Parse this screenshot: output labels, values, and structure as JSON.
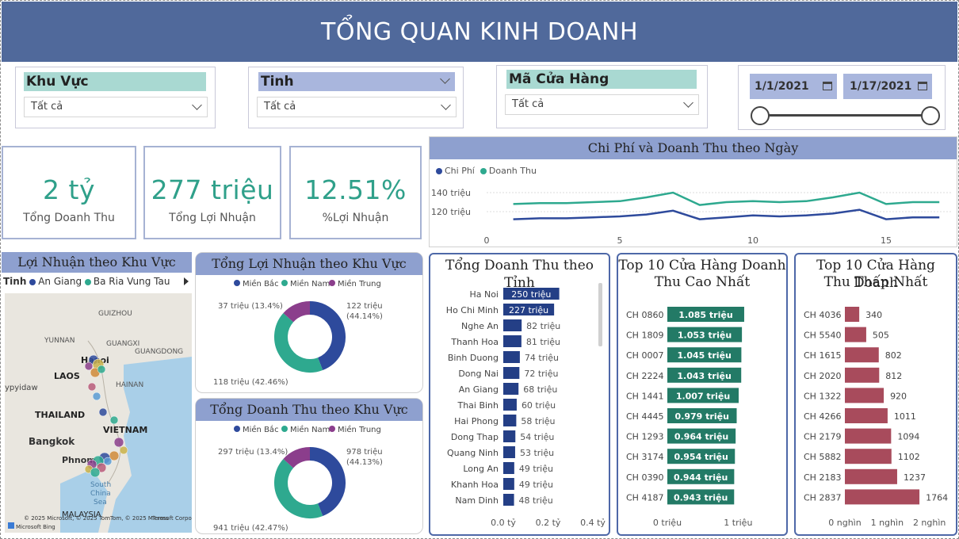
{
  "header": {
    "title": "TỔNG QUAN KINH DOANH"
  },
  "slicers": {
    "region": {
      "title": "Khu Vực",
      "value": "Tất cả"
    },
    "province": {
      "title": "Tinh",
      "value": "Tất cả"
    },
    "store": {
      "title": "Mã Cửa Hàng",
      "value": "Tất cả"
    },
    "date": {
      "start": "1/1/2021",
      "end": "1/17/2021",
      "range": [
        0.0,
        1.0
      ]
    }
  },
  "kpis": [
    {
      "value": "2 tỷ",
      "label": "Tổng Doanh Thu"
    },
    {
      "value": "277 triệu",
      "label": "Tổng Lợi Nhuận"
    },
    {
      "value": "12.51%",
      "label": "%Lợi Nhuận"
    }
  ],
  "colors": {
    "accent": "#2fa08a",
    "banner": "#50699b",
    "navy": "#2e4a9c",
    "teal": "#2ea98f",
    "purple": "#8b3e8c",
    "maroon": "#a84b5c",
    "green": "#237a66"
  },
  "line_chart": {
    "title": "Chi Phí và Doanh Thu theo Ngày",
    "legend": [
      "Chi Phí",
      "Doanh Thu"
    ],
    "yticks": [
      "140 triệu",
      "120 triệu"
    ],
    "xticks": [
      "0",
      "5",
      "10",
      "15"
    ]
  },
  "map": {
    "title": "Lợi Nhuận theo Khu Vực",
    "legend_title": "Tinh",
    "legend_items": [
      "An Giang",
      "Ba Ria Vung Tau"
    ],
    "labels": [
      "GUIZHOU",
      "YUNNAN",
      "GUANGXI",
      "GUANGDONG",
      "HAINAN",
      "Hanoi",
      "LAOS",
      "THAILAND",
      "VIETNAM",
      "Bangkok",
      "Phnom",
      "South China Sea",
      "MALAYSIA",
      "ypyidaw"
    ],
    "attribution": "© 2025 Microsoft, © 2025 TomTom, © 2025 Microsoft Corporation",
    "terms": "Terms",
    "bing": "Microsoft Bing"
  },
  "donut_profit": {
    "title": "Tổng Lợi Nhuận theo Khu Vực",
    "legend": [
      "Miền Bắc",
      "Miền Nam",
      "Miền Trung"
    ],
    "labels": [
      "122 triệu",
      "(44.14%)",
      "118 triệu (42.46%)",
      "37 triệu (13.4%)"
    ]
  },
  "donut_revenue": {
    "title": "Tổng Doanh Thu theo Khu Vực",
    "legend": [
      "Miền Bắc",
      "Miền Nam",
      "Miền Trung"
    ],
    "labels": [
      "978 triệu",
      "(44.13%)",
      "941 triệu (42.47%)",
      "297 triệu (13.4%)"
    ]
  },
  "province_bar": {
    "title": "Tổng Doanh Thu theo Tỉnh",
    "xticks": [
      "0.0 tỷ",
      "0.2 tỷ",
      "0.4 tỷ"
    ]
  },
  "top10_high": {
    "title_line1": "Top 10 Cửa Hàng Doanh",
    "title_line2": "Thu Cao Nhất",
    "xticks": [
      "0 triệu",
      "1 triệu"
    ]
  },
  "top10_low": {
    "title_line1": "Top 10 Cửa Hàng Doanh",
    "title_line2": "Thu Thấp Nhất",
    "xticks": [
      "0 nghìn",
      "1 nghìn",
      "2 nghìn"
    ]
  },
  "chart_data": [
    {
      "type": "line",
      "title": "Chi Phí và Doanh Thu theo Ngày",
      "x": [
        1,
        2,
        3,
        4,
        5,
        6,
        7,
        8,
        9,
        10,
        11,
        12,
        13,
        14,
        15,
        16,
        17
      ],
      "series": [
        {
          "name": "Chi Phí",
          "values": [
            112,
            113,
            113,
            114,
            115,
            117,
            121,
            112,
            114,
            116,
            115,
            116,
            118,
            122,
            112,
            114,
            114
          ]
        },
        {
          "name": "Doanh Thu",
          "values": [
            128,
            129,
            129,
            130,
            131,
            135,
            140,
            127,
            130,
            131,
            130,
            131,
            135,
            140,
            128,
            130,
            130
          ]
        }
      ],
      "ylim": [
        105,
        150
      ],
      "xlim": [
        0,
        17.5
      ]
    },
    {
      "type": "pie",
      "title": "Tổng Lợi Nhuận theo Khu Vực",
      "categories": [
        "Miền Bắc",
        "Miền Nam",
        "Miền Trung"
      ],
      "values": [
        44.14,
        42.46,
        13.4
      ]
    },
    {
      "type": "pie",
      "title": "Tổng Doanh Thu theo Khu Vực",
      "categories": [
        "Miền Bắc",
        "Miền Nam",
        "Miền Trung"
      ],
      "values": [
        44.13,
        42.47,
        13.4
      ]
    },
    {
      "type": "bar",
      "title": "Tổng Doanh Thu theo Tỉnh",
      "categories": [
        "Ha Noi",
        "Ho Chi Minh",
        "Nghe An",
        "Thanh Hoa",
        "Binh Duong",
        "Dong Nai",
        "An Giang",
        "Thai Binh",
        "Hai Phong",
        "Dong Thap",
        "Quang Ninh",
        "Long An",
        "Khanh Hoa",
        "Nam Dinh"
      ],
      "values": [
        250,
        227,
        82,
        81,
        74,
        72,
        68,
        60,
        58,
        54,
        53,
        49,
        49,
        48
      ],
      "labels": [
        "250 triệu",
        "227 triệu",
        "82 triệu",
        "81 triệu",
        "74 triệu",
        "72 triệu",
        "68 triệu",
        "60 triệu",
        "58 triệu",
        "54 triệu",
        "53 triệu",
        "49 triệu",
        "49 triệu",
        "48 triệu"
      ],
      "unit": "triệu",
      "xlim": [
        0,
        400
      ]
    },
    {
      "type": "bar",
      "title": "Top 10 Cửa Hàng Doanh Thu Cao Nhất",
      "categories": [
        "CH 0860",
        "CH 1809",
        "CH 0007",
        "CH 2224",
        "CH 1441",
        "CH 4445",
        "CH 1293",
        "CH 3174",
        "CH 0390",
        "CH 4187"
      ],
      "values": [
        1.085,
        1.053,
        1.045,
        1.043,
        1.007,
        0.979,
        0.964,
        0.954,
        0.944,
        0.943
      ],
      "labels": [
        "1.085 triệu",
        "1.053 triệu",
        "1.045 triệu",
        "1.043 triệu",
        "1.007 triệu",
        "0.979 triệu",
        "0.964 triệu",
        "0.954 triệu",
        "0.944 triệu",
        "0.943 triệu"
      ],
      "xlim": [
        0,
        1.6
      ]
    },
    {
      "type": "bar",
      "title": "Top 10 Cửa Hàng Doanh Thu Thấp Nhất",
      "categories": [
        "CH 4036",
        "CH 5540",
        "CH 1615",
        "CH 2020",
        "CH 1322",
        "CH 4266",
        "CH 2179",
        "CH 5882",
        "CH 2183",
        "CH 2837"
      ],
      "values": [
        340,
        505,
        802,
        812,
        920,
        1011,
        1094,
        1102,
        1237,
        1764
      ],
      "labels": [
        "340",
        "505",
        "802",
        "812",
        "920",
        "1011",
        "1094",
        "1102",
        "1237",
        "1764"
      ],
      "xlim": [
        0,
        2400
      ]
    }
  ]
}
